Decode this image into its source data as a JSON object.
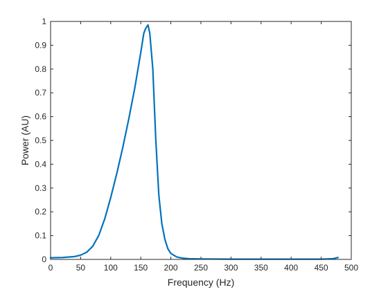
{
  "chart_data": {
    "type": "line",
    "xlabel": "Frequency (Hz)",
    "ylabel": "Power (AU)",
    "xlim": [
      0,
      500
    ],
    "ylim": [
      0,
      1
    ],
    "x_ticks": [
      0,
      50,
      100,
      150,
      200,
      250,
      300,
      350,
      400,
      450,
      500
    ],
    "y_ticks": [
      0,
      0.1,
      0.2,
      0.3,
      0.4,
      0.5,
      0.6,
      0.7,
      0.8,
      0.9,
      1
    ],
    "grid": false,
    "colors": {
      "line": "#0072BD",
      "axes": "#262626"
    },
    "series": [
      {
        "x": [
          0,
          20,
          40,
          50,
          60,
          70,
          80,
          90,
          100,
          110,
          120,
          130,
          140,
          150,
          155,
          158,
          162,
          165,
          170,
          175,
          180,
          185,
          190,
          195,
          200,
          210,
          220,
          230,
          250,
          300,
          350,
          400,
          450,
          470,
          478
        ],
        "y": [
          0.007,
          0.008,
          0.012,
          0.018,
          0.03,
          0.055,
          0.1,
          0.17,
          0.26,
          0.36,
          0.47,
          0.59,
          0.72,
          0.87,
          0.95,
          0.97,
          0.985,
          0.95,
          0.8,
          0.5,
          0.27,
          0.15,
          0.085,
          0.045,
          0.025,
          0.01,
          0.005,
          0.003,
          0.002,
          0.001,
          0.001,
          0.001,
          0.001,
          0.003,
          0.008
        ]
      }
    ]
  }
}
